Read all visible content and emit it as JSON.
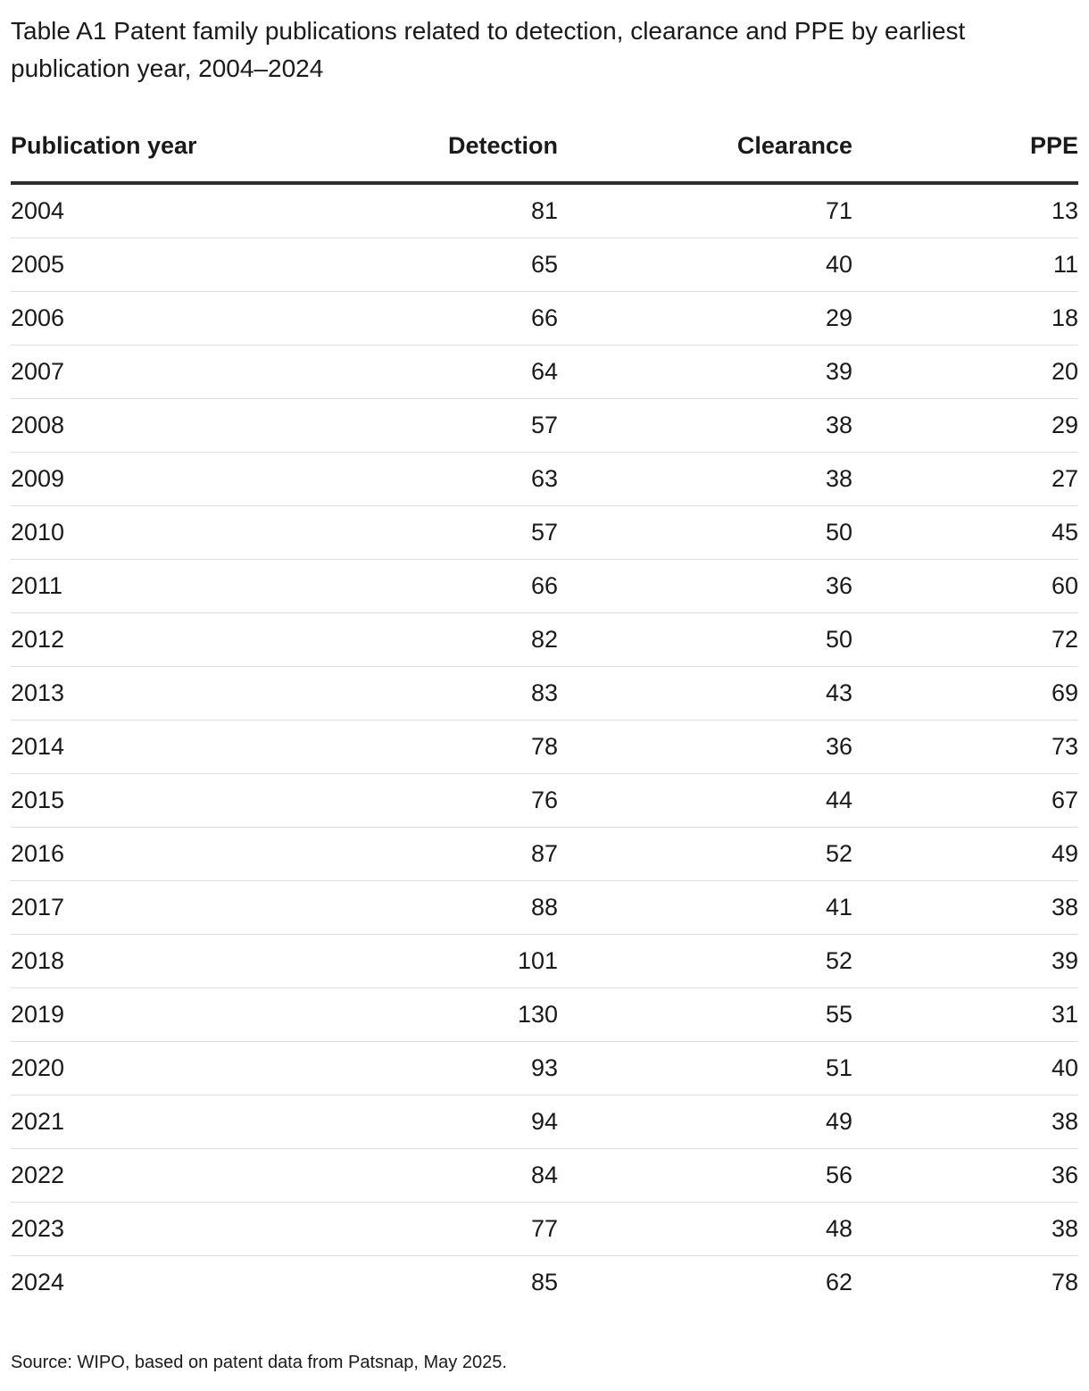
{
  "title": "Table A1 Patent family publications related to detection, clearance and PPE by earliest publication year, 2004–2024",
  "source": "Source: WIPO, based on patent data from Patsnap, May 2025.",
  "colors": {
    "text": "#1a1a1a",
    "header_rule": "#2e2e2e",
    "row_divider": "#dedede",
    "background": "#ffffff"
  },
  "table": {
    "columns": [
      "Publication year",
      "Detection",
      "Clearance",
      "PPE"
    ],
    "rows": [
      {
        "year": "2004",
        "detection": "81",
        "clearance": "71",
        "ppe": "13"
      },
      {
        "year": "2005",
        "detection": "65",
        "clearance": "40",
        "ppe": "11"
      },
      {
        "year": "2006",
        "detection": "66",
        "clearance": "29",
        "ppe": "18"
      },
      {
        "year": "2007",
        "detection": "64",
        "clearance": "39",
        "ppe": "20"
      },
      {
        "year": "2008",
        "detection": "57",
        "clearance": "38",
        "ppe": "29"
      },
      {
        "year": "2009",
        "detection": "63",
        "clearance": "38",
        "ppe": "27"
      },
      {
        "year": "2010",
        "detection": "57",
        "clearance": "50",
        "ppe": "45"
      },
      {
        "year": "2011",
        "detection": "66",
        "clearance": "36",
        "ppe": "60"
      },
      {
        "year": "2012",
        "detection": "82",
        "clearance": "50",
        "ppe": "72"
      },
      {
        "year": "2013",
        "detection": "83",
        "clearance": "43",
        "ppe": "69"
      },
      {
        "year": "2014",
        "detection": "78",
        "clearance": "36",
        "ppe": "73"
      },
      {
        "year": "2015",
        "detection": "76",
        "clearance": "44",
        "ppe": "67"
      },
      {
        "year": "2016",
        "detection": "87",
        "clearance": "52",
        "ppe": "49"
      },
      {
        "year": "2017",
        "detection": "88",
        "clearance": "41",
        "ppe": "38"
      },
      {
        "year": "2018",
        "detection": "101",
        "clearance": "52",
        "ppe": "39"
      },
      {
        "year": "2019",
        "detection": "130",
        "clearance": "55",
        "ppe": "31"
      },
      {
        "year": "2020",
        "detection": "93",
        "clearance": "51",
        "ppe": "40"
      },
      {
        "year": "2021",
        "detection": "94",
        "clearance": "49",
        "ppe": "38"
      },
      {
        "year": "2022",
        "detection": "84",
        "clearance": "56",
        "ppe": "36"
      },
      {
        "year": "2023",
        "detection": "77",
        "clearance": "48",
        "ppe": "38"
      },
      {
        "year": "2024",
        "detection": "85",
        "clearance": "62",
        "ppe": "78"
      }
    ]
  },
  "chart_data": {
    "type": "table",
    "title": "Table A1 Patent family publications related to detection, clearance and PPE by earliest publication year, 2004–2024",
    "categories": [
      "2004",
      "2005",
      "2006",
      "2007",
      "2008",
      "2009",
      "2010",
      "2011",
      "2012",
      "2013",
      "2014",
      "2015",
      "2016",
      "2017",
      "2018",
      "2019",
      "2020",
      "2021",
      "2022",
      "2023",
      "2024"
    ],
    "series": [
      {
        "name": "Detection",
        "values": [
          81,
          65,
          66,
          64,
          57,
          63,
          57,
          66,
          82,
          83,
          78,
          76,
          87,
          88,
          101,
          130,
          93,
          94,
          84,
          77,
          85
        ]
      },
      {
        "name": "Clearance",
        "values": [
          71,
          40,
          29,
          39,
          38,
          38,
          50,
          36,
          50,
          43,
          36,
          44,
          52,
          41,
          52,
          55,
          51,
          49,
          56,
          48,
          62
        ]
      },
      {
        "name": "PPE",
        "values": [
          13,
          11,
          18,
          20,
          29,
          27,
          45,
          60,
          72,
          69,
          73,
          67,
          49,
          38,
          39,
          31,
          40,
          38,
          36,
          38,
          78
        ]
      }
    ]
  }
}
